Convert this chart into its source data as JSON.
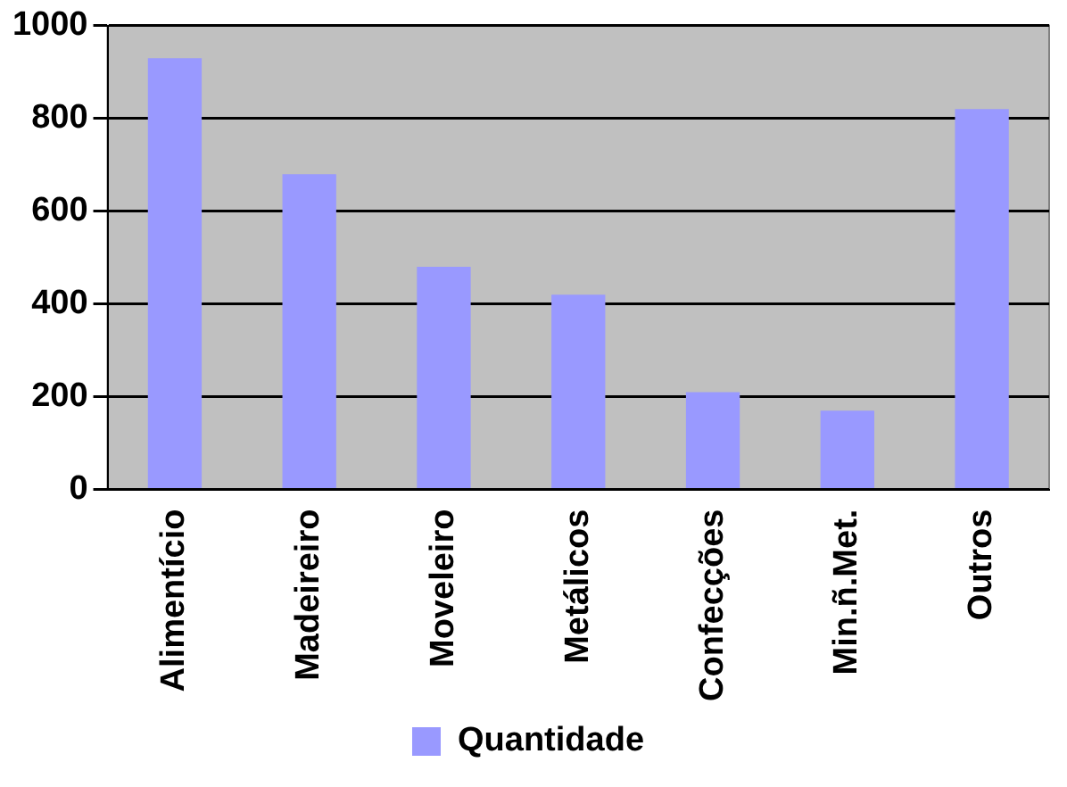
{
  "chart_data": {
    "type": "bar",
    "categories": [
      "Alimentício",
      "Madeireiro",
      "Moveleiro",
      "Metálicos",
      "Confecções",
      "Min.ñ.Met.",
      "Outros"
    ],
    "series": [
      {
        "name": "Quantidade",
        "color": "#9999ff",
        "values": [
          930,
          680,
          480,
          420,
          210,
          170,
          820
        ]
      }
    ],
    "ylim": [
      0,
      1000
    ],
    "yticks": [
      0,
      200,
      400,
      600,
      800,
      1000
    ],
    "grid": "y",
    "legend": "bottom"
  }
}
